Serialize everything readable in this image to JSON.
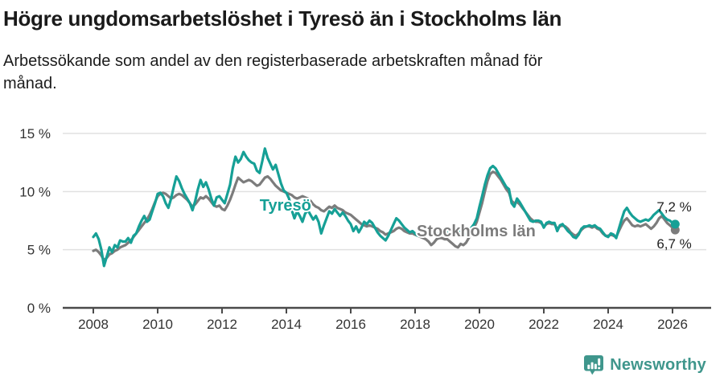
{
  "header": {
    "title": "Högre ungdomsarbetslöshet i Tyresö än i Stockholms län",
    "subtitle_line1": "Arbetssökande som andel av den registerbaserade arbetskraften månad för",
    "subtitle_line2": "månad."
  },
  "colors": {
    "tyreso": "#16a096",
    "stockholm": "#7c7c7c",
    "grid": "#e0e0e0",
    "axis": "#4a4a4a",
    "text": "#333333",
    "value_label": "#222222",
    "brand": "#3f968c"
  },
  "footer": {
    "brand_name": "Newsworthy",
    "logo_icon": "bar-chart-exclamation-bubble-icon"
  },
  "chart_data": {
    "type": "line",
    "title": "Högre ungdomsarbetslöshet i Tyresö än i Stockholms län",
    "subtitle": "Arbetssökande som andel av den registerbaserade arbetskraften månad för månad.",
    "frequency": "monthly",
    "start": "2008-01",
    "end": "2026-02",
    "y_unit": "%",
    "ylim": [
      0,
      15
    ],
    "grid": true,
    "legend_position": "inline-labels",
    "y_ticks": [
      {
        "value": 0,
        "label": "0 %"
      },
      {
        "value": 5,
        "label": "5 %"
      },
      {
        "value": 10,
        "label": "10 %"
      },
      {
        "value": 15,
        "label": "15 %"
      }
    ],
    "x_ticks": [
      2008,
      2010,
      2012,
      2014,
      2016,
      2018,
      2020,
      2022,
      2024,
      2026
    ],
    "annotations": [
      {
        "text": "Tyresö",
        "x": 2013.17,
        "y": 8.35,
        "color_key": "tyreso"
      },
      {
        "text": "Stockholms län",
        "x": 2018.05,
        "y": 6.15,
        "color_key": "stockholm"
      }
    ],
    "series": [
      {
        "name": "Tyresö",
        "color_key": "tyreso",
        "end_label": "7,2 %",
        "end_label_position": "above",
        "values": [
          6.1,
          6.4,
          5.9,
          5.0,
          3.6,
          4.4,
          5.2,
          4.8,
          5.4,
          5.2,
          5.8,
          5.7,
          5.7,
          6.0,
          5.6,
          6.2,
          6.4,
          7.0,
          7.5,
          7.9,
          7.4,
          7.6,
          8.3,
          9.0,
          9.8,
          9.9,
          9.6,
          9.0,
          8.6,
          9.4,
          10.4,
          11.3,
          10.9,
          10.3,
          9.8,
          9.4,
          9.0,
          8.4,
          9.2,
          10.2,
          11.0,
          10.4,
          10.8,
          10.2,
          9.4,
          8.8,
          9.5,
          9.6,
          9.3,
          9.0,
          9.8,
          10.6,
          12.0,
          13.0,
          12.5,
          12.8,
          13.4,
          13.0,
          12.7,
          12.5,
          12.4,
          11.8,
          11.6,
          12.6,
          13.7,
          12.9,
          12.4,
          11.9,
          12.3,
          11.5,
          10.7,
          10.1,
          9.9,
          9.4,
          8.4,
          7.7,
          8.3,
          7.9,
          7.4,
          8.1,
          8.4,
          8.0,
          7.6,
          7.9,
          7.4,
          6.4,
          7.1,
          7.7,
          8.3,
          8.1,
          8.5,
          8.2,
          7.9,
          8.2,
          7.9,
          7.5,
          7.2,
          6.6,
          7.0,
          6.5,
          6.9,
          7.4,
          7.2,
          7.5,
          7.3,
          6.9,
          6.5,
          6.2,
          6.0,
          5.8,
          6.2,
          6.7,
          7.2,
          7.7,
          7.5,
          7.2,
          6.9,
          6.7,
          6.5,
          6.6,
          6.4,
          6.2,
          6.5,
          6.7,
          6.4,
          6.3,
          6.6,
          6.4,
          6.3,
          6.4,
          6.3,
          6.5,
          6.6,
          6.4,
          6.3,
          6.5,
          6.6,
          6.4,
          6.5,
          6.3,
          6.6,
          6.9,
          7.2,
          7.7,
          8.7,
          9.6,
          10.6,
          11.4,
          12.0,
          12.2,
          12.0,
          11.6,
          11.2,
          10.8,
          10.4,
          10.2,
          9.0,
          8.7,
          9.4,
          9.1,
          8.7,
          8.3,
          7.9,
          7.5,
          7.4,
          7.5,
          7.5,
          7.4,
          6.9,
          7.3,
          7.4,
          7.3,
          7.3,
          6.6,
          7.1,
          7.2,
          6.9,
          6.6,
          6.4,
          6.1,
          6.0,
          6.3,
          6.8,
          7.0,
          7.0,
          7.1,
          7.0,
          7.1,
          6.9,
          6.8,
          6.5,
          6.2,
          6.1,
          6.4,
          6.3,
          6.0,
          6.8,
          7.6,
          8.3,
          8.6,
          8.2,
          7.9,
          7.7,
          7.5,
          7.4,
          7.5,
          7.6,
          7.5,
          7.7,
          8.0,
          8.2,
          8.4,
          8.1,
          7.8,
          7.6,
          7.5,
          7.3,
          7.2
        ]
      },
      {
        "name": "Stockholms län",
        "color_key": "stockholm",
        "end_label": "6,7 %",
        "end_label_position": "below",
        "values": [
          4.9,
          5.0,
          4.8,
          4.5,
          4.1,
          4.3,
          4.6,
          4.7,
          4.9,
          5.0,
          5.2,
          5.3,
          5.4,
          5.6,
          5.8,
          6.1,
          6.4,
          6.7,
          7.0,
          7.3,
          7.6,
          8.0,
          8.5,
          9.1,
          9.6,
          9.8,
          9.9,
          9.8,
          9.6,
          9.4,
          9.5,
          9.7,
          9.8,
          9.7,
          9.5,
          9.3,
          9.0,
          8.7,
          8.9,
          9.2,
          9.5,
          9.4,
          9.6,
          9.4,
          9.1,
          8.8,
          8.7,
          8.8,
          8.5,
          8.4,
          8.8,
          9.3,
          9.9,
          10.6,
          11.2,
          11.0,
          10.8,
          10.9,
          11.0,
          10.9,
          10.7,
          10.5,
          10.6,
          10.9,
          11.2,
          11.3,
          11.1,
          10.8,
          10.5,
          10.3,
          10.1,
          10.0,
          9.9,
          9.8,
          9.7,
          9.5,
          9.4,
          9.5,
          9.6,
          9.5,
          9.4,
          9.2,
          8.9,
          8.7,
          8.6,
          8.4,
          8.3,
          8.5,
          8.7,
          8.6,
          8.8,
          8.6,
          8.5,
          8.4,
          8.2,
          8.1,
          8.0,
          7.8,
          7.6,
          7.4,
          7.2,
          7.1,
          7.0,
          7.1,
          7.0,
          6.9,
          6.8,
          6.6,
          6.5,
          6.3,
          6.4,
          6.5,
          6.6,
          6.8,
          6.9,
          6.8,
          6.6,
          6.5,
          6.4,
          6.4,
          6.3,
          6.2,
          6.1,
          6.0,
          5.9,
          5.7,
          5.4,
          5.6,
          5.9,
          6.0,
          6.0,
          5.9,
          5.9,
          5.7,
          5.5,
          5.3,
          5.2,
          5.5,
          5.4,
          5.6,
          6.0,
          6.4,
          6.9,
          7.4,
          8.2,
          9.0,
          10.0,
          10.9,
          11.5,
          11.7,
          11.6,
          11.3,
          11.0,
          10.6,
          10.2,
          9.9,
          9.2,
          9.0,
          9.1,
          8.9,
          8.6,
          8.3,
          8.0,
          7.7,
          7.5,
          7.4,
          7.4,
          7.3,
          7.0,
          7.2,
          7.3,
          7.2,
          7.2,
          6.8,
          7.0,
          7.1,
          7.0,
          6.8,
          6.5,
          6.3,
          6.2,
          6.4,
          6.7,
          6.9,
          7.0,
          7.0,
          6.9,
          7.0,
          6.8,
          6.7,
          6.4,
          6.2,
          6.2,
          6.3,
          6.2,
          6.1,
          6.6,
          7.1,
          7.5,
          7.7,
          7.4,
          7.1,
          7.0,
          7.1,
          7.0,
          7.1,
          7.2,
          7.0,
          6.8,
          7.0,
          7.3,
          7.7,
          7.9,
          7.6,
          7.3,
          7.1,
          6.9,
          6.7
        ]
      }
    ]
  }
}
